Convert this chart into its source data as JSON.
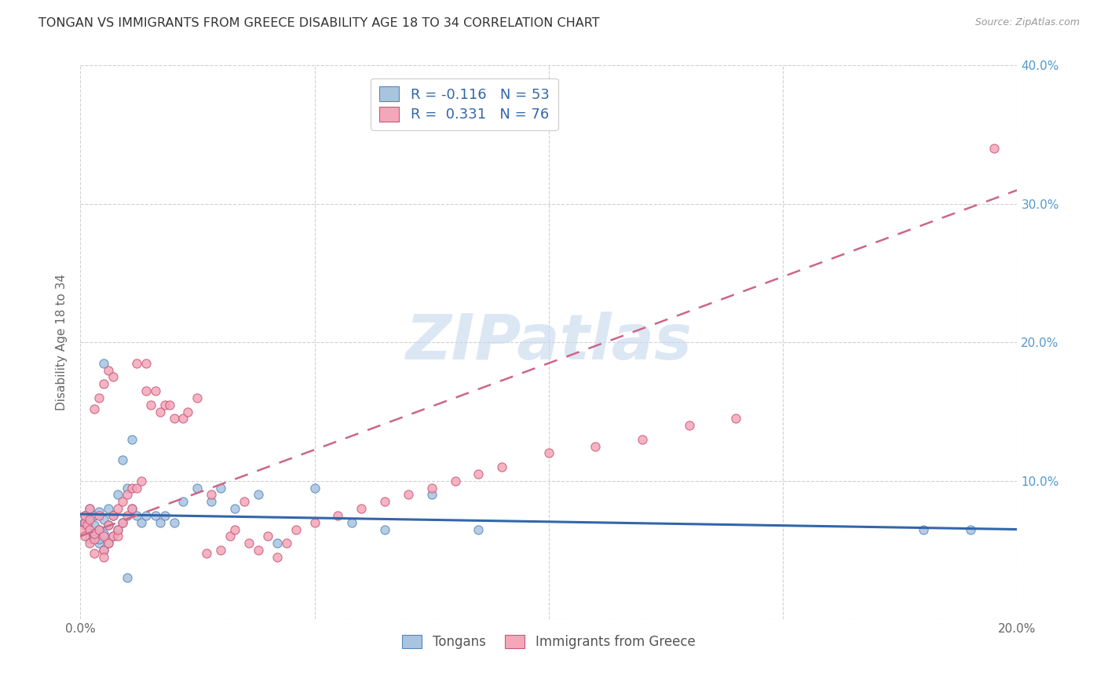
{
  "title": "TONGAN VS IMMIGRANTS FROM GREECE DISABILITY AGE 18 TO 34 CORRELATION CHART",
  "source": "Source: ZipAtlas.com",
  "ylabel": "Disability Age 18 to 34",
  "xlim": [
    0,
    0.2
  ],
  "ylim": [
    0,
    0.4
  ],
  "legend_label1": "Tongans",
  "legend_label2": "Immigrants from Greece",
  "R1": -0.116,
  "N1": 53,
  "R2": 0.331,
  "N2": 76,
  "color_blue": "#aac4e0",
  "color_pink": "#f4a7b9",
  "color_blue_edge": "#5588bb",
  "color_pink_edge": "#cc5577",
  "color_blue_line": "#3366aa",
  "color_pink_line": "#cc6688",
  "watermark": "ZIPatlas",
  "background_color": "#ffffff",
  "grid_color": "#cccccc",
  "title_color": "#333333",
  "right_axis_color": "#5599cc",
  "tongans_x": [
    0.0008,
    0.001,
    0.001,
    0.0015,
    0.002,
    0.002,
    0.002,
    0.003,
    0.003,
    0.003,
    0.003,
    0.004,
    0.004,
    0.004,
    0.004,
    0.005,
    0.005,
    0.005,
    0.005,
    0.006,
    0.006,
    0.006,
    0.007,
    0.007,
    0.008,
    0.008,
    0.009,
    0.009,
    0.01,
    0.011,
    0.011,
    0.012,
    0.013,
    0.014,
    0.016,
    0.017,
    0.018,
    0.02,
    0.022,
    0.025,
    0.028,
    0.03,
    0.033,
    0.038,
    0.042,
    0.05,
    0.058,
    0.065,
    0.075,
    0.085,
    0.01,
    0.18,
    0.19
  ],
  "tongans_y": [
    0.07,
    0.068,
    0.075,
    0.072,
    0.065,
    0.08,
    0.058,
    0.06,
    0.075,
    0.062,
    0.068,
    0.055,
    0.065,
    0.078,
    0.058,
    0.05,
    0.062,
    0.072,
    0.185,
    0.055,
    0.068,
    0.08,
    0.06,
    0.075,
    0.065,
    0.09,
    0.07,
    0.115,
    0.095,
    0.13,
    0.08,
    0.075,
    0.07,
    0.075,
    0.075,
    0.07,
    0.075,
    0.07,
    0.085,
    0.095,
    0.085,
    0.095,
    0.08,
    0.09,
    0.055,
    0.095,
    0.07,
    0.065,
    0.09,
    0.065,
    0.03,
    0.065,
    0.065
  ],
  "greece_x": [
    0.0005,
    0.001,
    0.001,
    0.001,
    0.0015,
    0.002,
    0.002,
    0.002,
    0.002,
    0.003,
    0.003,
    0.003,
    0.003,
    0.004,
    0.004,
    0.004,
    0.005,
    0.005,
    0.005,
    0.005,
    0.006,
    0.006,
    0.006,
    0.007,
    0.007,
    0.007,
    0.008,
    0.008,
    0.008,
    0.009,
    0.009,
    0.01,
    0.01,
    0.011,
    0.011,
    0.012,
    0.012,
    0.013,
    0.014,
    0.014,
    0.015,
    0.016,
    0.017,
    0.018,
    0.019,
    0.02,
    0.022,
    0.023,
    0.025,
    0.027,
    0.028,
    0.03,
    0.032,
    0.033,
    0.035,
    0.036,
    0.038,
    0.04,
    0.042,
    0.044,
    0.046,
    0.05,
    0.055,
    0.06,
    0.065,
    0.07,
    0.075,
    0.08,
    0.085,
    0.09,
    0.1,
    0.11,
    0.12,
    0.13,
    0.14,
    0.195
  ],
  "greece_y": [
    0.065,
    0.07,
    0.06,
    0.075,
    0.068,
    0.072,
    0.065,
    0.055,
    0.08,
    0.058,
    0.062,
    0.152,
    0.048,
    0.065,
    0.075,
    0.16,
    0.05,
    0.06,
    0.17,
    0.045,
    0.055,
    0.068,
    0.18,
    0.06,
    0.075,
    0.175,
    0.06,
    0.065,
    0.08,
    0.07,
    0.085,
    0.075,
    0.09,
    0.08,
    0.095,
    0.185,
    0.095,
    0.1,
    0.185,
    0.165,
    0.155,
    0.165,
    0.15,
    0.155,
    0.155,
    0.145,
    0.145,
    0.15,
    0.16,
    0.048,
    0.09,
    0.05,
    0.06,
    0.065,
    0.085,
    0.055,
    0.05,
    0.06,
    0.045,
    0.055,
    0.065,
    0.07,
    0.075,
    0.08,
    0.085,
    0.09,
    0.095,
    0.1,
    0.105,
    0.11,
    0.12,
    0.125,
    0.13,
    0.14,
    0.145,
    0.34
  ]
}
